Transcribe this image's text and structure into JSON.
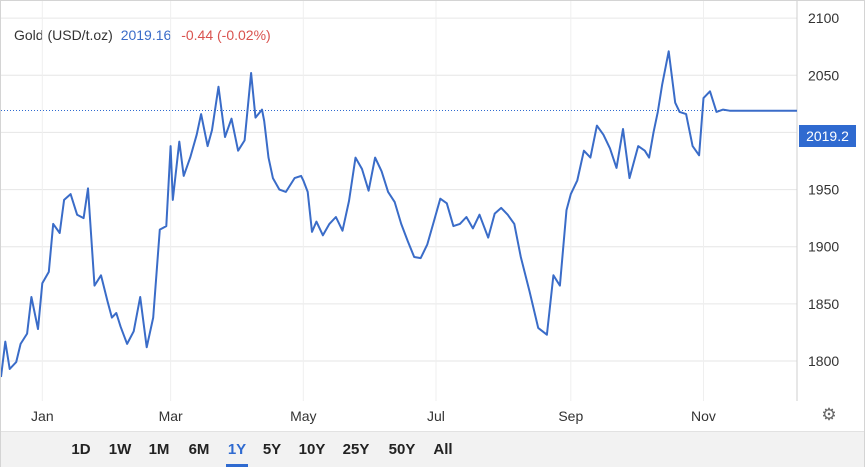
{
  "legend": {
    "instrument": "Gold (USD/t.oz)",
    "price": "2019.16",
    "change": "-0.44 (-0.02%)"
  },
  "price_tag": "2019.2",
  "settings_icon": "gear-icon",
  "range_buttons": [
    "1D",
    "1W",
    "1M",
    "6M",
    "1Y",
    "5Y",
    "10Y",
    "25Y",
    "50Y",
    "All"
  ],
  "active_range": "1Y",
  "colors": {
    "line": "#3a6cc8",
    "tag": "#2f6ad0",
    "change_negative": "#d9534f"
  },
  "chart_data": {
    "type": "line",
    "title": "",
    "xlabel": "",
    "ylabel": "",
    "ylim": [
      1765,
      2115
    ],
    "yticks": [
      1800,
      1850,
      1900,
      1950,
      2000,
      2050,
      2100
    ],
    "grid": true,
    "current_value": 2019.16,
    "x_ticks": [
      {
        "label": "Jan",
        "x": "2023-01-01"
      },
      {
        "label": "Mar",
        "x": "2023-03-01"
      },
      {
        "label": "May",
        "x": "2023-05-01"
      },
      {
        "label": "Jul",
        "x": "2023-07-01"
      },
      {
        "label": "Sep",
        "x": "2023-09-01"
      },
      {
        "label": "Nov",
        "x": "2023-11-01"
      }
    ],
    "xlim": [
      "2022-12-13",
      "2023-12-14"
    ],
    "series": [
      {
        "x": [
          "2022-12-13",
          "2022-12-15",
          "2022-12-17",
          "2022-12-20",
          "2022-12-22",
          "2022-12-25",
          "2022-12-27",
          "2022-12-30",
          "2023-01-01",
          "2023-01-04",
          "2023-01-06",
          "2023-01-09",
          "2023-01-11",
          "2023-01-14",
          "2023-01-17",
          "2023-01-20",
          "2023-01-22",
          "2023-01-25",
          "2023-01-28",
          "2023-01-31",
          "2023-02-02",
          "2023-02-04",
          "2023-02-06",
          "2023-02-09",
          "2023-02-12",
          "2023-02-15",
          "2023-02-18",
          "2023-02-21",
          "2023-02-24",
          "2023-02-27",
          "2023-03-01",
          "2023-03-02",
          "2023-03-05",
          "2023-03-07",
          "2023-03-10",
          "2023-03-13",
          "2023-03-15",
          "2023-03-18",
          "2023-03-20",
          "2023-03-23",
          "2023-03-26",
          "2023-03-29",
          "2023-04-01",
          "2023-04-04",
          "2023-04-07",
          "2023-04-09",
          "2023-04-12",
          "2023-04-13",
          "2023-04-15",
          "2023-04-17",
          "2023-04-20",
          "2023-04-23",
          "2023-04-27",
          "2023-04-30",
          "2023-05-01",
          "2023-05-03",
          "2023-05-05",
          "2023-05-07",
          "2023-05-10",
          "2023-05-13",
          "2023-05-16",
          "2023-05-19",
          "2023-05-22",
          "2023-05-25",
          "2023-05-28",
          "2023-05-31",
          "2023-06-03",
          "2023-06-06",
          "2023-06-09",
          "2023-06-12",
          "2023-06-15",
          "2023-06-18",
          "2023-06-21",
          "2023-06-24",
          "2023-06-27",
          "2023-06-30",
          "2023-07-03",
          "2023-07-06",
          "2023-07-09",
          "2023-07-12",
          "2023-07-15",
          "2023-07-18",
          "2023-07-21",
          "2023-07-25",
          "2023-07-28",
          "2023-07-31",
          "2023-08-03",
          "2023-08-06",
          "2023-08-09",
          "2023-08-13",
          "2023-08-17",
          "2023-08-21",
          "2023-08-24",
          "2023-08-27",
          "2023-08-30",
          "2023-09-01",
          "2023-09-04",
          "2023-09-07",
          "2023-09-10",
          "2023-09-13",
          "2023-09-16",
          "2023-09-19",
          "2023-09-22",
          "2023-09-25",
          "2023-09-28",
          "2023-10-02",
          "2023-10-05",
          "2023-10-07",
          "2023-10-09",
          "2023-10-11",
          "2023-10-13",
          "2023-10-16",
          "2023-10-19",
          "2023-10-21",
          "2023-10-24",
          "2023-10-27",
          "2023-10-30",
          "2023-11-01",
          "2023-11-04",
          "2023-11-07",
          "2023-11-10",
          "2023-11-13",
          "2023-11-16",
          "2023-11-19",
          "2023-11-22",
          "2023-11-25",
          "2023-11-28",
          "2023-12-01",
          "2023-12-03",
          "2023-12-05",
          "2023-12-07",
          "2023-12-09",
          "2023-12-11",
          "2023-12-14"
        ],
        "values": [
          1786,
          1817,
          1793,
          1799,
          1815,
          1824,
          1856,
          1828,
          1868,
          1878,
          1920,
          1912,
          1941,
          1946,
          1928,
          1925,
          1951,
          1866,
          1875,
          1852,
          1838,
          1842,
          1830,
          1815,
          1826,
          1856,
          1812,
          1838,
          1915,
          1918,
          1988,
          1941,
          1992,
          1962,
          1978,
          1998,
          2016,
          1988,
          2002,
          2040,
          1996,
          2012,
          1984,
          1993,
          2052,
          2013,
          2020,
          2010,
          1978,
          1960,
          1950,
          1948,
          1960,
          1962,
          1958,
          1948,
          1913,
          1922,
          1910,
          1920,
          1926,
          1914,
          1940,
          1978,
          1968,
          1949,
          1978,
          1966,
          1948,
          1939,
          1920,
          1905,
          1891,
          1890,
          1902,
          1922,
          1942,
          1938,
          1918,
          1920,
          1926,
          1916,
          1928,
          1908,
          1929,
          1934,
          1928,
          1920,
          1891,
          1861,
          1829,
          1823,
          1875,
          1866,
          1932,
          1946,
          1958,
          1984,
          1978,
          2006,
          1998,
          1986,
          1969,
          2003,
          1960,
          1988,
          1984,
          1978,
          2000,
          2018,
          2042,
          2071,
          2026,
          2018,
          2016,
          1988,
          1980,
          2030,
          2036,
          2018,
          2020,
          2019,
          2019,
          2019,
          2019,
          2019,
          2019,
          2019,
          2019,
          2019,
          2019,
          2019,
          2019,
          2019
        ]
      }
    ]
  }
}
